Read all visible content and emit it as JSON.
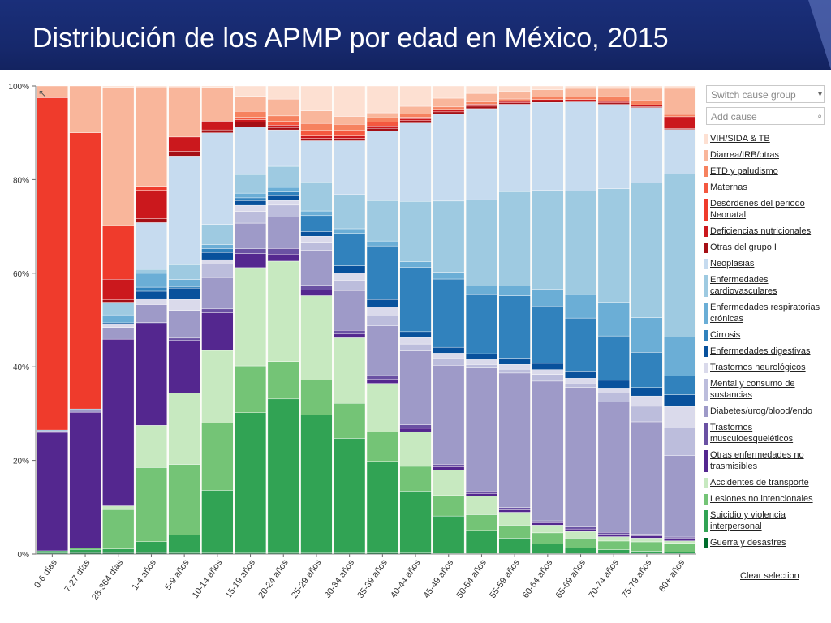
{
  "title": "Distribución de los APMP por edad en México, 2015",
  "controls": {
    "switch_group": "Switch cause group",
    "add_cause": "Add cause",
    "clear_selection": "Clear selection"
  },
  "legend": [
    {
      "label": "VIH/SIDA & TB",
      "color": "#fde0d2",
      "rows": 1
    },
    {
      "label": "Diarrea/IRB/otras",
      "color": "#f9b69b",
      "rows": 1
    },
    {
      "label": "ETD y paludismo",
      "color": "#f6825f",
      "rows": 1
    },
    {
      "label": "Maternas",
      "color": "#f4583f",
      "rows": 1
    },
    {
      "label": "Desórdenes del periodo Neonatal",
      "color": "#ef3b2c",
      "rows": 2
    },
    {
      "label": "Deficiencias nutricionales",
      "color": "#cb181d",
      "rows": 1
    },
    {
      "label": "Otras del grupo I",
      "color": "#a50f15",
      "rows": 1
    },
    {
      "label": "Neoplasias",
      "color": "#c6dbef",
      "rows": 1
    },
    {
      "label": "Enfermedades cardiovasculares",
      "color": "#9ecae1",
      "rows": 2
    },
    {
      "label": "Enfermedades respiratorias crónicas",
      "color": "#6baed6",
      "rows": 2
    },
    {
      "label": "Cirrosis",
      "color": "#3182bd",
      "rows": 1
    },
    {
      "label": "Enfermedades digestivas",
      "color": "#08519c",
      "rows": 1
    },
    {
      "label": "Trastornos neurológicos",
      "color": "#dadaeb",
      "rows": 1
    },
    {
      "label": "Mental y consumo de sustancias",
      "color": "#bcbddc",
      "rows": 2
    },
    {
      "label": "Diabetes/urog/blood/endo",
      "color": "#9e9ac8",
      "rows": 1
    },
    {
      "label": "Trastornos musculoesqueléticos",
      "color": "#6a51a3",
      "rows": 2
    },
    {
      "label": "Otras enfermedades no trasmisibles",
      "color": "#54278f",
      "rows": 2
    },
    {
      "label": "Accidentes de transporte",
      "color": "#c7e9c0",
      "rows": 1
    },
    {
      "label": "Lesiones no intencionales",
      "color": "#74c476",
      "rows": 1
    },
    {
      "label": "Suicidio y violencia interpersonal",
      "color": "#31a354",
      "rows": 2
    },
    {
      "label": "Guerra y desastres",
      "color": "#006d2c",
      "rows": 1
    }
  ],
  "chart_data": {
    "type": "bar",
    "stacked": "percent",
    "title": "",
    "xlabel": "",
    "ylabel": "",
    "ylim": [
      0,
      100
    ],
    "yticks": [
      "0%",
      "20%",
      "40%",
      "60%",
      "80%",
      "100%"
    ],
    "grid": false,
    "categories": [
      "0-6 días",
      "7-27 días",
      "28-364 días",
      "1-4 años",
      "5-9 años",
      "10-14 años",
      "15-19 años",
      "20-24 años",
      "25-29 años",
      "30-34 años",
      "35-39 años",
      "40-44 años",
      "45-49 años",
      "50-54 años",
      "55-59 años",
      "60-64 años",
      "65-69 años",
      "70-74 años",
      "75-79 años",
      "80+ años"
    ],
    "series": [
      {
        "name": "Guerra y desastres",
        "color": "#006d2c",
        "values": [
          0.2,
          0.3,
          0.3,
          0.3,
          0.2,
          0.2,
          0.2,
          0.2,
          0.2,
          0.2,
          0.2,
          0.2,
          0.1,
          0.1,
          0.1,
          0.1,
          0.1,
          0.1,
          0.1,
          0.1
        ]
      },
      {
        "name": "Suicidio y violencia interpersonal",
        "color": "#31a354",
        "values": [
          0.5,
          0.7,
          0.8,
          2.2,
          3.8,
          13,
          30,
          33,
          29.5,
          24.5,
          18.8,
          12.5,
          7.7,
          4.7,
          3.2,
          2,
          1.2,
          0.8,
          0.5,
          0.3
        ]
      },
      {
        "name": "Lesiones no intencionales",
        "color": "#74c476",
        "values": [
          0,
          0.3,
          8.4,
          14.9,
          14.8,
          14,
          10,
          8,
          7.5,
          7.5,
          6,
          5,
          4.2,
          3.2,
          2.7,
          2.3,
          2,
          1.8,
          2,
          1.9
        ]
      },
      {
        "name": "Accidentes de transporte",
        "color": "#c7e9c0",
        "values": [
          0,
          0,
          0.8,
          8.5,
          15,
          15,
          21,
          21.5,
          18,
          14,
          10,
          7,
          5.2,
          3.8,
          2.7,
          1.6,
          1.4,
          0.9,
          0.8,
          0.5
        ]
      },
      {
        "name": "Otras enfermedades no trasmisibles",
        "color": "#54278f",
        "values": [
          25.3,
          29,
          35.6,
          20.4,
          11,
          7.8,
          3,
          1.5,
          1.2,
          0.8,
          0.8,
          0.7,
          0.7,
          0.5,
          0.5,
          0.5,
          0.5,
          0.5,
          0.5,
          0.5
        ]
      },
      {
        "name": "Trastornos musculoesqueléticos",
        "color": "#6a51a3",
        "values": [
          0,
          0,
          0,
          0.3,
          0.5,
          0.8,
          1,
          1.2,
          1,
          0.8,
          0.8,
          0.7,
          0.5,
          0.5,
          0.5,
          0.4,
          0.4,
          0.4,
          0.3,
          0.3
        ]
      },
      {
        "name": "Diabetes/urog/blood/endo",
        "color": "#9e9ac8",
        "values": [
          0.3,
          0.5,
          2.5,
          3.6,
          5.8,
          6.5,
          5.5,
          6.8,
          7.5,
          8.5,
          10.2,
          14.9,
          20.3,
          25,
          28,
          29,
          29,
          27,
          24,
          17.2
        ]
      },
      {
        "name": "Mental y consumo de sustancias",
        "color": "#bcbddc",
        "values": [
          0,
          0,
          0,
          0,
          0,
          2.8,
          2.5,
          2.5,
          1.7,
          2.2,
          2,
          1.4,
          1.5,
          0.7,
          0.8,
          1.4,
          0.9,
          1.9,
          3.3,
          5.9
        ]
      },
      {
        "name": "Trastornos neurológicos",
        "color": "#dadaeb",
        "values": [
          0,
          0,
          0.7,
          1.2,
          2.3,
          0.9,
          1.3,
          1,
          1.3,
          1.6,
          1.9,
          1.3,
          1,
          1,
          1,
          1,
          1,
          1,
          2.2,
          4.5
        ]
      },
      {
        "name": "Enfermedades digestivas",
        "color": "#08519c",
        "values": [
          0,
          0,
          0.3,
          1.5,
          2.4,
          1.5,
          1,
          1,
          1,
          1.5,
          1.5,
          1.2,
          1.2,
          1.2,
          1.3,
          1.3,
          1.5,
          1.6,
          1.8,
          2.5
        ]
      },
      {
        "name": "Cirrosis",
        "color": "#3182bd",
        "values": [
          0,
          0,
          0,
          0.8,
          0.3,
          0.8,
          0.6,
          0.8,
          3.4,
          6.9,
          11,
          13,
          14,
          12,
          13,
          11.9,
          11,
          9.2,
          7.5,
          4
        ]
      },
      {
        "name": "Enfermedades respiratorias crónicas",
        "color": "#6baed6",
        "values": [
          0.2,
          0.2,
          1.7,
          2.8,
          1.5,
          0.8,
          1,
          1,
          1,
          1,
          1,
          1.1,
          1.4,
          1.8,
          2.1,
          3.5,
          4.9,
          7,
          7.4,
          8.2
        ]
      },
      {
        "name": "Enfermedades cardiovasculares",
        "color": "#9ecae1",
        "values": [
          0,
          0,
          2.7,
          0.8,
          3.1,
          4.2,
          4,
          4.5,
          6.2,
          7.3,
          8.3,
          12.2,
          14.6,
          17.5,
          19.6,
          20.5,
          21.5,
          23.5,
          28.7,
          34.5
        ]
      },
      {
        "name": "Neoplasias",
        "color": "#c6dbef",
        "values": [
          0,
          0,
          0,
          9.4,
          22.8,
          19,
          10.2,
          7.8,
          8.8,
          11.5,
          14.3,
          15.8,
          17.8,
          18.5,
          18.2,
          18.3,
          18.5,
          17.5,
          16.1,
          9.4
        ]
      },
      {
        "name": "Otras del grupo I",
        "color": "#a50f15",
        "values": [
          0,
          0,
          0.5,
          0.8,
          1,
          0.6,
          1,
          0.5,
          0.5,
          0.5,
          0.5,
          0.5,
          0.5,
          0.5,
          0.3,
          0.3,
          0.2,
          0.3,
          0.2,
          0.2
        ]
      },
      {
        "name": "Deficiencias nutricionales",
        "color": "#cb181d",
        "values": [
          0,
          0,
          4.4,
          5.7,
          3,
          1.8,
          0.5,
          0.5,
          0.5,
          0.5,
          0.5,
          0.4,
          0.5,
          0.4,
          0.3,
          0.3,
          0.3,
          0.3,
          0.4,
          2.5
        ]
      },
      {
        "name": "Desórdenes del periodo Neonatal",
        "color": "#ef3b2c",
        "values": [
          71,
          59,
          11.5,
          0.8,
          0,
          0,
          0,
          0,
          0,
          0,
          0,
          0,
          0,
          0,
          0,
          0,
          0,
          0,
          0,
          0
        ]
      },
      {
        "name": "Maternas",
        "color": "#f4583f",
        "values": [
          0,
          0,
          0,
          0,
          0,
          0,
          0.5,
          0.8,
          1.2,
          1.2,
          0.8,
          0.3,
          0,
          0,
          0,
          0,
          0,
          0,
          0,
          0
        ]
      },
      {
        "name": "ETD y paludismo",
        "color": "#f6825f",
        "values": [
          0,
          0,
          0,
          0,
          0,
          0,
          1.3,
          1.2,
          1.5,
          1.3,
          0.9,
          0.7,
          0.5,
          0.5,
          0.5,
          0.5,
          0.5,
          1,
          1,
          0.5
        ]
      },
      {
        "name": "Diarrea/IRB/otras",
        "color": "#f9b69b",
        "values": [
          2.5,
          10,
          29.5,
          20,
          10.5,
          7,
          3.2,
          3.6,
          2.7,
          1.7,
          1,
          1.5,
          1.8,
          1.7,
          1.6,
          1.5,
          1.8,
          1.7,
          2.5,
          5.5
        ]
      },
      {
        "name": "VIH/SIDA & TB",
        "color": "#fde0d2",
        "values": [
          0,
          0,
          0.3,
          0.2,
          0.2,
          0.3,
          2.2,
          2.8,
          5.3,
          6.5,
          5.5,
          4.1,
          2.5,
          1.5,
          1.1,
          0.8,
          0.5,
          0.5,
          0.5,
          0.5
        ]
      }
    ]
  }
}
